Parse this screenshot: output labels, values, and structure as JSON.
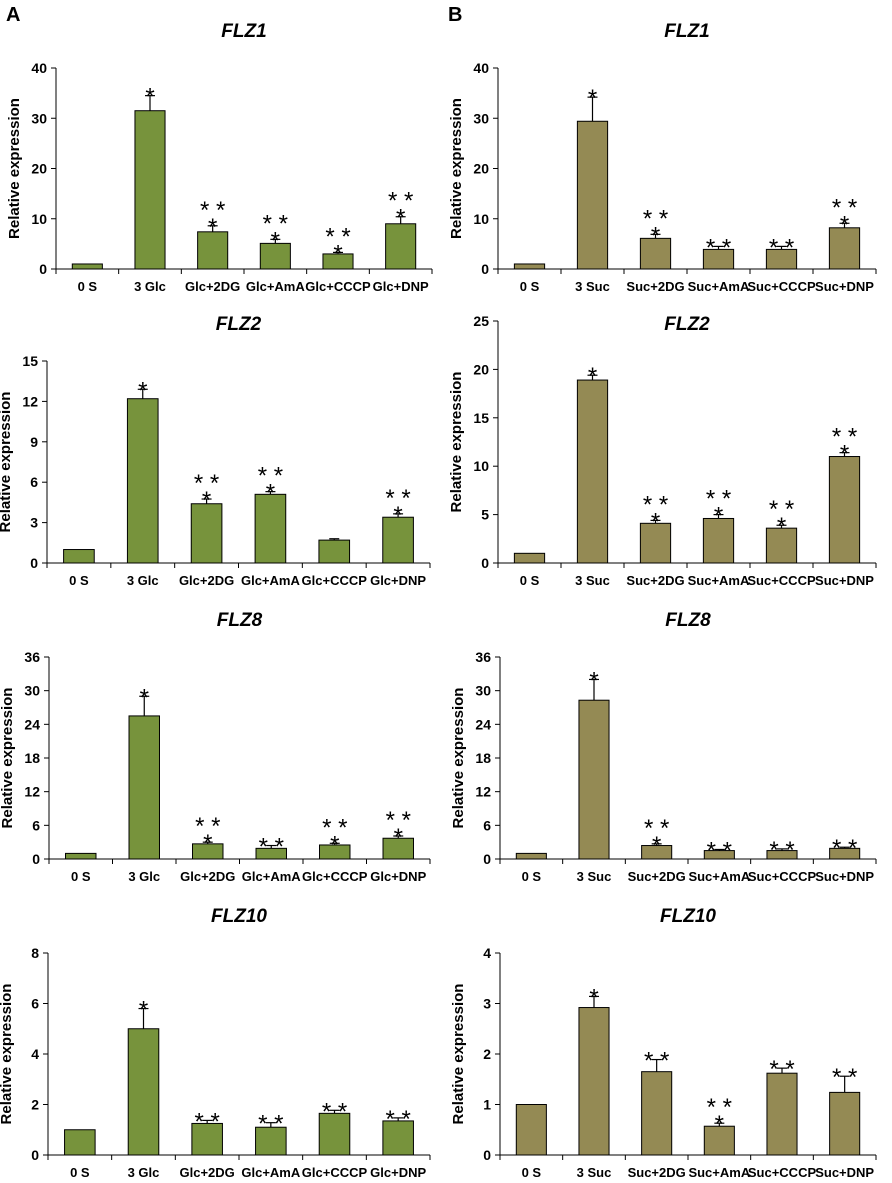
{
  "panel_labels": [
    "A",
    "B"
  ],
  "colors": {
    "glc_bar": "#77933C",
    "suc_bar": "#948A54",
    "outline": "#000000"
  },
  "chart_data": [
    {
      "type": "bar",
      "panel": "A",
      "title": "FLZ1",
      "ylabel": "Relative expression",
      "xlabel": "",
      "categories": [
        "0 S",
        "3 Glc",
        "Glc+2DG",
        "Glc+AmA",
        "Glc+CCCP",
        "Glc+DNP"
      ],
      "values": [
        1,
        31.5,
        7.4,
        5.1,
        3.0,
        9.0
      ],
      "errors": [
        0,
        3.0,
        1.2,
        0.8,
        0.3,
        1.4
      ],
      "significance": [
        "",
        "*",
        "**\n*",
        "**\n*",
        "**\n*",
        "**\n*"
      ],
      "ylim": [
        0,
        40
      ],
      "yticks": [
        "0",
        "10",
        "20",
        "30",
        "40"
      ],
      "color": "#77933C"
    },
    {
      "type": "bar",
      "panel": "B",
      "title": "FLZ1",
      "ylabel": "Relative expression",
      "xlabel": "",
      "categories": [
        "0 S",
        "3 Suc",
        "Suc+2DG",
        "Suc+AmA",
        "Suc+CCCP",
        "Suc+DNP"
      ],
      "values": [
        1,
        29.4,
        6.1,
        3.9,
        3.9,
        8.2
      ],
      "errors": [
        0,
        4.8,
        0.8,
        0.6,
        0.6,
        0.9
      ],
      "significance": [
        "",
        "*",
        "**\n*",
        "**",
        "**",
        "**\n*"
      ],
      "ylim": [
        0,
        40
      ],
      "yticks": [
        "0",
        "10",
        "20",
        "30",
        "40"
      ],
      "color": "#948A54"
    },
    {
      "type": "bar",
      "panel": "A",
      "title": "FLZ2",
      "ylabel": "Relative expression",
      "xlabel": "",
      "categories": [
        "0 S",
        "3 Glc",
        "Glc+2DG",
        "Glc+AmA",
        "Glc+CCCP",
        "Glc+DNP"
      ],
      "values": [
        1,
        12.2,
        4.4,
        5.1,
        1.7,
        3.4
      ],
      "errors": [
        0,
        0.7,
        0.35,
        0.2,
        0.1,
        0.25
      ],
      "significance": [
        "",
        "*",
        "**\n*",
        "**\n*",
        "",
        "**\n*"
      ],
      "ylim": [
        0,
        15
      ],
      "yticks": [
        "0",
        "3",
        "6",
        "9",
        "12",
        "15"
      ],
      "color": "#77933C"
    },
    {
      "type": "bar",
      "panel": "B",
      "title": "FLZ2",
      "ylabel": "Relative expression",
      "xlabel": "",
      "categories": [
        "0 S",
        "3 Suc",
        "Suc+2DG",
        "Suc+AmA",
        "Suc+CCCP",
        "Suc+DNP"
      ],
      "values": [
        1,
        18.9,
        4.1,
        4.6,
        3.6,
        11.0
      ],
      "errors": [
        0,
        0.5,
        0.3,
        0.4,
        0.3,
        0.4
      ],
      "significance": [
        "",
        "*",
        "**\n*",
        "**\n*",
        "**\n*",
        "**\n*"
      ],
      "ylim": [
        0,
        25
      ],
      "yticks": [
        "0",
        "5",
        "10",
        "15",
        "20",
        "25"
      ],
      "color": "#948A54"
    },
    {
      "type": "bar",
      "panel": "A",
      "title": "FLZ8",
      "ylabel": "Relative expression",
      "xlabel": "",
      "categories": [
        "0 S",
        "3 Glc",
        "Glc+2DG",
        "Glc+AmA",
        "Glc+CCCP",
        "Glc+DNP"
      ],
      "values": [
        1,
        25.5,
        2.7,
        1.9,
        2.5,
        3.7
      ],
      "errors": [
        0,
        3.5,
        0.3,
        0.5,
        0.3,
        0.4
      ],
      "significance": [
        "",
        "*",
        "**\n*",
        "**",
        "**\n*",
        "**\n*"
      ],
      "ylim": [
        0,
        36
      ],
      "yticks": [
        "0",
        "6",
        "12",
        "18",
        "24",
        "30",
        "36"
      ],
      "color": "#77933C"
    },
    {
      "type": "bar",
      "panel": "B",
      "title": "FLZ8",
      "ylabel": "Relative expression",
      "xlabel": "",
      "categories": [
        "0 S",
        "3 Suc",
        "Suc+2DG",
        "Suc+AmA",
        "Suc+CCCP",
        "Suc+DNP"
      ],
      "values": [
        1,
        28.3,
        2.4,
        1.5,
        1.5,
        1.9
      ],
      "errors": [
        0,
        3.7,
        0.3,
        0.2,
        0.3,
        0.2
      ],
      "significance": [
        "",
        "*",
        "**\n*",
        "**",
        "**",
        "**"
      ],
      "ylim": [
        0,
        36
      ],
      "yticks": [
        "0",
        "6",
        "12",
        "18",
        "24",
        "30",
        "36"
      ],
      "color": "#948A54"
    },
    {
      "type": "bar",
      "panel": "A",
      "title": "FLZ10",
      "ylabel": "Relative expression",
      "xlabel": "",
      "categories": [
        "0 S",
        "3 Glc",
        "Glc+2DG",
        "Glc+AmA",
        "Glc+CCCP",
        "Glc+DNP"
      ],
      "values": [
        1,
        5.0,
        1.25,
        1.1,
        1.65,
        1.35
      ],
      "errors": [
        0,
        0.8,
        0.12,
        0.18,
        0.12,
        0.12
      ],
      "significance": [
        "",
        "*",
        "**",
        "**",
        "**",
        "**"
      ],
      "ylim": [
        0,
        8
      ],
      "yticks": [
        "0",
        "2",
        "4",
        "6",
        "8"
      ],
      "color": "#77933C"
    },
    {
      "type": "bar",
      "panel": "B",
      "title": "FLZ10",
      "ylabel": "Relative expression",
      "xlabel": "",
      "categories": [
        "0 S",
        "3 Suc",
        "Suc+2DG",
        "Suc+AmA",
        "Suc+CCCP",
        "Suc+DNP"
      ],
      "values": [
        1,
        2.92,
        1.65,
        0.57,
        1.62,
        1.24
      ],
      "errors": [
        0,
        0.22,
        0.24,
        0.06,
        0.1,
        0.32
      ],
      "significance": [
        "",
        "*",
        "**",
        "**\n*",
        "**",
        "**"
      ],
      "ylim": [
        0,
        4
      ],
      "yticks": [
        "0",
        "1",
        "2",
        "3",
        "4"
      ],
      "color": "#948A54"
    }
  ]
}
